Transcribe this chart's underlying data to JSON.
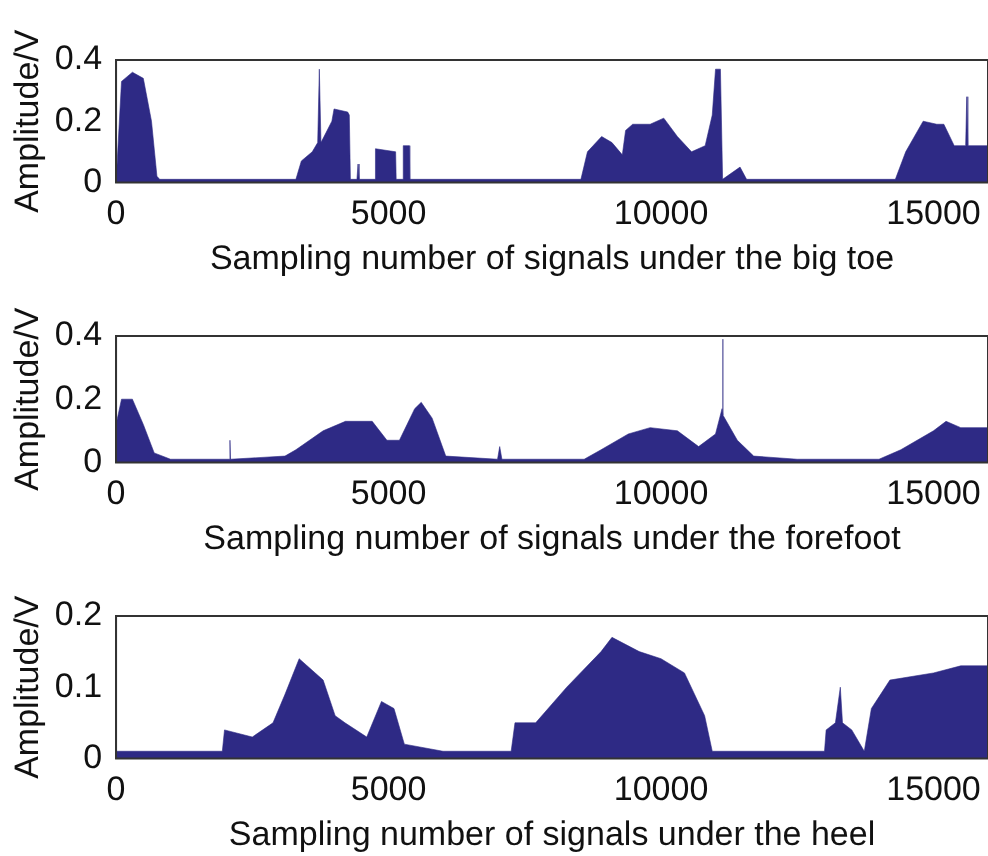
{
  "chart_data": [
    {
      "type": "area",
      "xlabel": "Sampling number of signals under the big toe",
      "ylabel": "Amplitude/V",
      "color": "#2e2a85",
      "marker": "none",
      "xlim": [
        0,
        16000
      ],
      "ylim": [
        0,
        0.4
      ],
      "xticks": [
        0,
        5000,
        10000,
        15000
      ],
      "yticks": [
        0,
        0.2,
        0.4
      ],
      "x": [
        0,
        100,
        300,
        500,
        650,
        750,
        800,
        3300,
        3400,
        3600,
        3700,
        3730,
        3760,
        3960,
        4000,
        4250,
        4280,
        4300,
        4420,
        4440,
        4460,
        4750,
        4760,
        5130,
        5140,
        5260,
        5270,
        5380,
        5390,
        8530,
        8650,
        8910,
        9100,
        9290,
        9350,
        9480,
        9800,
        10050,
        10300,
        10560,
        10810,
        10940,
        11000,
        11090,
        11130,
        11450,
        11570,
        14300,
        14490,
        14810,
        15060,
        15190,
        15380,
        15590,
        15610,
        15630,
        16000
      ],
      "values": [
        0,
        0.33,
        0.36,
        0.34,
        0.2,
        0.02,
        0.01,
        0.01,
        0.07,
        0.1,
        0.13,
        0.37,
        0.13,
        0.2,
        0.24,
        0.23,
        0.22,
        0.01,
        0.01,
        0.06,
        0.01,
        0.01,
        0.11,
        0.1,
        0.01,
        0.01,
        0.12,
        0.12,
        0.01,
        0.01,
        0.1,
        0.15,
        0.13,
        0.09,
        0.17,
        0.19,
        0.19,
        0.21,
        0.15,
        0.1,
        0.12,
        0.22,
        0.37,
        0.37,
        0.01,
        0.05,
        0.01,
        0.01,
        0.1,
        0.2,
        0.19,
        0.19,
        0.12,
        0.12,
        0.28,
        0.12,
        0.12
      ]
    },
    {
      "type": "area",
      "xlabel": "Sampling number of signals under the forefoot",
      "ylabel": "Amplitude/V",
      "color": "#2e2a85",
      "marker": "none",
      "xlim": [
        0,
        16000
      ],
      "ylim": [
        0,
        0.4
      ],
      "xticks": [
        0,
        5000,
        10000,
        15000
      ],
      "yticks": [
        0,
        0.2,
        0.4
      ],
      "x": [
        0,
        100,
        300,
        500,
        700,
        1000,
        2080,
        2090,
        2100,
        3100,
        3300,
        3800,
        4210,
        4700,
        4970,
        5200,
        5480,
        5600,
        5800,
        6050,
        7000,
        7040,
        7080,
        8590,
        8900,
        9400,
        9800,
        10300,
        10690,
        11000,
        11120,
        11130,
        11140,
        11400,
        11700,
        12500,
        14000,
        14400,
        15000,
        15230,
        15500,
        16000
      ],
      "values": [
        0.12,
        0.2,
        0.2,
        0.12,
        0.03,
        0.01,
        0.01,
        0.07,
        0.01,
        0.02,
        0.04,
        0.1,
        0.13,
        0.13,
        0.07,
        0.07,
        0.17,
        0.19,
        0.14,
        0.02,
        0.01,
        0.05,
        0.01,
        0.01,
        0.04,
        0.09,
        0.11,
        0.1,
        0.05,
        0.09,
        0.17,
        0.39,
        0.15,
        0.07,
        0.02,
        0.01,
        0.01,
        0.04,
        0.1,
        0.13,
        0.11,
        0.11
      ]
    },
    {
      "type": "area",
      "xlabel": "Sampling number of signals under the heel",
      "ylabel": "Amplitude/V",
      "color": "#2e2a85",
      "marker": "none",
      "xlim": [
        0,
        16000
      ],
      "ylim": [
        0,
        0.2
      ],
      "xticks": [
        0,
        5000,
        10000,
        15000
      ],
      "yticks": [
        0,
        0.1,
        0.2
      ],
      "x": [
        0,
        1950,
        1990,
        2500,
        2880,
        3100,
        3360,
        3800,
        4020,
        4200,
        4600,
        4870,
        5100,
        5290,
        6000,
        7250,
        7320,
        7700,
        8270,
        8900,
        9100,
        9600,
        10000,
        10430,
        10800,
        10940,
        13000,
        13030,
        13200,
        13290,
        13330,
        13500,
        13730,
        13860,
        14200,
        15000,
        15500,
        16000
      ],
      "values": [
        0.01,
        0.01,
        0.04,
        0.03,
        0.05,
        0.09,
        0.14,
        0.11,
        0.06,
        0.05,
        0.03,
        0.08,
        0.07,
        0.02,
        0.01,
        0.01,
        0.05,
        0.05,
        0.1,
        0.15,
        0.17,
        0.15,
        0.14,
        0.12,
        0.06,
        0.01,
        0.01,
        0.04,
        0.05,
        0.1,
        0.05,
        0.04,
        0.01,
        0.07,
        0.11,
        0.12,
        0.13,
        0.13
      ]
    }
  ]
}
